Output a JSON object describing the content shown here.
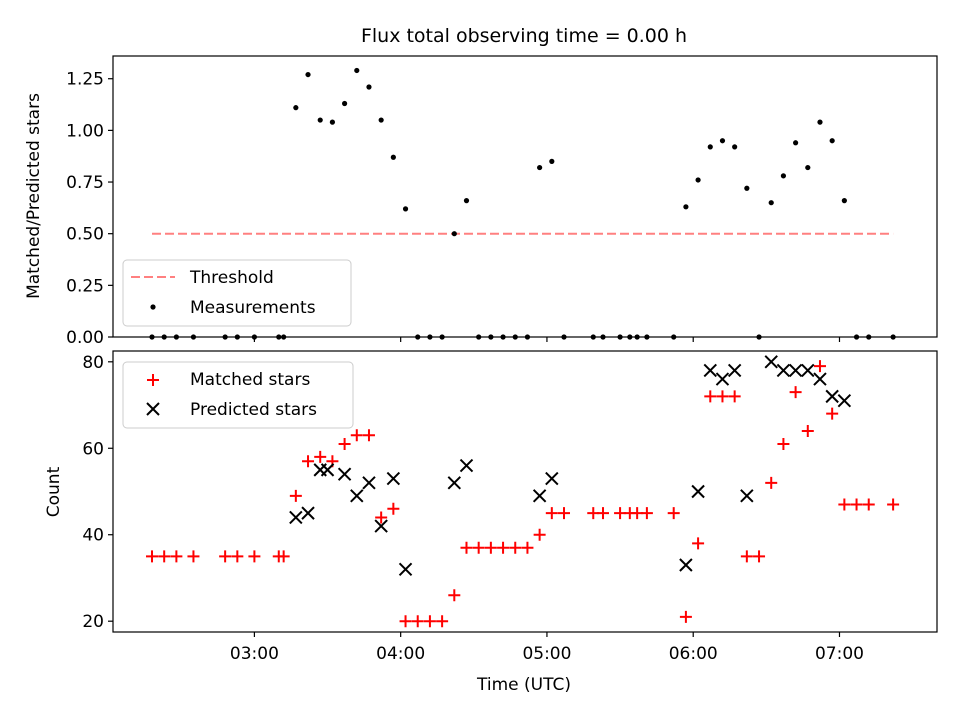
{
  "chart_data": [
    {
      "type": "scatter",
      "title": "Flux total observing time = 0.00 h",
      "ylabel": "Matched/Predicted stars",
      "xlabel": "",
      "ylim": [
        0,
        1.36
      ],
      "yticks": [
        "0.00",
        "0.25",
        "0.50",
        "0.75",
        "1.00",
        "1.25"
      ],
      "legend": "lower-left",
      "threshold": {
        "name": "Threshold",
        "value": 0.5,
        "x_start": "02:18",
        "x_end": "07:22",
        "color": "#ff8080"
      },
      "series": [
        {
          "name": "Measurements",
          "marker": "dot",
          "color": "#000000",
          "x": [
            "02:18",
            "02:23",
            "02:28",
            "02:35",
            "02:48",
            "02:53",
            "03:00",
            "03:10",
            "03:12",
            "03:17",
            "03:22",
            "03:27",
            "03:32",
            "03:37",
            "03:42",
            "03:47",
            "03:52",
            "03:57",
            "04:02",
            "04:07",
            "04:12",
            "04:17",
            "04:22",
            "04:27",
            "04:32",
            "04:37",
            "04:42",
            "04:47",
            "04:52",
            "04:57",
            "05:02",
            "05:07",
            "05:19",
            "05:23",
            "05:30",
            "05:34",
            "05:37",
            "05:41",
            "05:52",
            "05:57",
            "06:02",
            "06:07",
            "06:12",
            "06:17",
            "06:22",
            "06:27",
            "06:32",
            "06:37",
            "06:42",
            "06:47",
            "06:52",
            "06:57",
            "07:02",
            "07:07",
            "07:12",
            "07:22"
          ],
          "y": [
            0,
            0,
            0,
            0,
            0,
            0,
            0,
            0,
            0,
            1.11,
            1.27,
            1.05,
            1.04,
            1.13,
            1.29,
            1.21,
            1.05,
            0.87,
            0.62,
            0,
            0,
            0,
            0.5,
            0.66,
            0,
            0,
            0,
            0,
            0,
            0.82,
            0.85,
            0,
            0,
            0,
            0,
            0,
            0,
            0,
            0,
            0.63,
            0.76,
            0.92,
            0.95,
            0.92,
            0.72,
            0,
            0.65,
            0.78,
            0.94,
            0.82,
            1.04,
            0.95,
            0.66,
            0,
            0,
            0
          ]
        }
      ]
    },
    {
      "type": "scatter",
      "title": "",
      "xlabel": "Time (UTC)",
      "ylabel": "Count",
      "ylim": [
        17.5,
        82.5
      ],
      "yticks": [
        "20",
        "40",
        "60",
        "80"
      ],
      "xticks": [
        "03:00",
        "04:00",
        "05:00",
        "06:00",
        "07:00"
      ],
      "xlim": [
        "02:02",
        "07:40"
      ],
      "legend": "upper-left",
      "series": [
        {
          "name": "Matched stars",
          "marker": "plus",
          "color": "#ff0000",
          "x": [
            "02:18",
            "02:23",
            "02:28",
            "02:35",
            "02:48",
            "02:53",
            "03:00",
            "03:10",
            "03:12",
            "03:17",
            "03:22",
            "03:27",
            "03:32",
            "03:37",
            "03:42",
            "03:47",
            "03:52",
            "03:57",
            "04:02",
            "04:07",
            "04:12",
            "04:17",
            "04:22",
            "04:27",
            "04:32",
            "04:37",
            "04:42",
            "04:47",
            "04:52",
            "04:57",
            "05:02",
            "05:07",
            "05:19",
            "05:23",
            "05:30",
            "05:34",
            "05:37",
            "05:41",
            "05:52",
            "05:57",
            "06:02",
            "06:07",
            "06:12",
            "06:17",
            "06:22",
            "06:27",
            "06:32",
            "06:37",
            "06:42",
            "06:47",
            "06:52",
            "06:57",
            "07:02",
            "07:07",
            "07:12",
            "07:22"
          ],
          "y": [
            35,
            35,
            35,
            35,
            35,
            35,
            35,
            35,
            35,
            49,
            57,
            58,
            57,
            61,
            63,
            63,
            44,
            46,
            20,
            20,
            20,
            20,
            26,
            37,
            37,
            37,
            37,
            37,
            37,
            40,
            45,
            45,
            45,
            45,
            45,
            45,
            45,
            45,
            45,
            21,
            38,
            72,
            72,
            72,
            35,
            35,
            52,
            61,
            73,
            64,
            79,
            68,
            47,
            47,
            47,
            47
          ]
        },
        {
          "name": "Predicted stars",
          "marker": "x",
          "color": "#000000",
          "x": [
            "03:17",
            "03:22",
            "03:27",
            "03:30",
            "03:37",
            "03:42",
            "03:47",
            "03:52",
            "03:57",
            "04:02",
            "04:22",
            "04:27",
            "04:57",
            "05:02",
            "05:57",
            "06:02",
            "06:07",
            "06:12",
            "06:17",
            "06:22",
            "06:32",
            "06:37",
            "06:42",
            "06:47",
            "06:52",
            "06:57",
            "07:02"
          ],
          "y": [
            44,
            45,
            55,
            55,
            54,
            49,
            52,
            42,
            53,
            32,
            52,
            56,
            49,
            53,
            33,
            50,
            78,
            76,
            78,
            49,
            80,
            78,
            78,
            78,
            76,
            72,
            71
          ]
        }
      ]
    }
  ]
}
